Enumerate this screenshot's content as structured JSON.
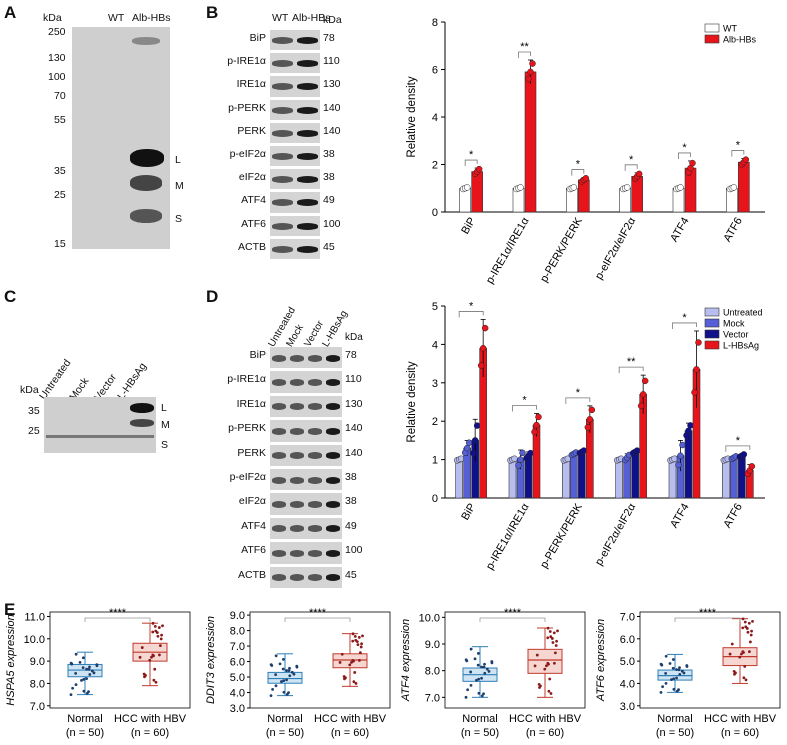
{
  "panels": {
    "A": "A",
    "B": "B",
    "C": "C",
    "D": "D",
    "E": "E"
  },
  "panelA": {
    "kda": "kDa",
    "cols": [
      "WT",
      "Alb-HBs"
    ],
    "ladder": [
      "250",
      "130",
      "100",
      "70",
      "55",
      "35",
      "25",
      "15"
    ],
    "bands": [
      "L",
      "M",
      "S"
    ]
  },
  "panelB_blot": {
    "cols": [
      "WT",
      "Alb-HBs"
    ],
    "kda": "kDa",
    "rows": [
      {
        "label": "BiP",
        "kda": "78"
      },
      {
        "label": "p-IRE1α",
        "kda": "110"
      },
      {
        "label": "IRE1α",
        "kda": "130"
      },
      {
        "label": "p-PERK",
        "kda": "140"
      },
      {
        "label": "PERK",
        "kda": "140"
      },
      {
        "label": "p-eIF2α",
        "kda": "38"
      },
      {
        "label": "eIF2α",
        "kda": "38"
      },
      {
        "label": "ATF4",
        "kda": "49"
      },
      {
        "label": "ATF6",
        "kda": "100"
      },
      {
        "label": "ACTB",
        "kda": "45"
      }
    ]
  },
  "panelC": {
    "kda": "kDa",
    "cols": [
      "Untreated",
      "Mock",
      "Vector",
      "L-HBsAg"
    ],
    "ladder": [
      "35",
      "25"
    ],
    "bands": [
      "L",
      "M",
      "S"
    ]
  },
  "panelD_blot": {
    "cols": [
      "Untreated",
      "Mock",
      "Vector",
      "L-HBsAg"
    ],
    "kda": "kDa",
    "rows": [
      {
        "label": "BiP",
        "kda": "78"
      },
      {
        "label": "p-IRE1α",
        "kda": "110"
      },
      {
        "label": "IRE1α",
        "kda": "130"
      },
      {
        "label": "p-PERK",
        "kda": "140"
      },
      {
        "label": "PERK",
        "kda": "140"
      },
      {
        "label": "p-eIF2α",
        "kda": "38"
      },
      {
        "label": "eIF2α",
        "kda": "38"
      },
      {
        "label": "ATF4",
        "kda": "49"
      },
      {
        "label": "ATF6",
        "kda": "100"
      },
      {
        "label": "ACTB",
        "kda": "45"
      }
    ]
  },
  "chart_data": [
    {
      "id": "B",
      "type": "bar",
      "ylabel": "Relative density",
      "ylim": [
        0,
        8
      ],
      "yticks": [
        "0",
        "2",
        "4",
        "6",
        "8"
      ],
      "categories": [
        "BiP",
        "p-IRE1α/IRE1α",
        "p-PERK/PERK",
        "p-eIF2α/eIF2α",
        "ATF4",
        "ATF6"
      ],
      "series": [
        {
          "name": "WT",
          "color": "#ffffff",
          "values": [
            1,
            1,
            1,
            1,
            1,
            1
          ],
          "err": [
            0.05,
            0.05,
            0.05,
            0.05,
            0.05,
            0.05
          ]
        },
        {
          "name": "Alb-HBs",
          "color": "#e8141b",
          "values": [
            1.7,
            5.9,
            1.35,
            1.5,
            1.85,
            2.1
          ],
          "err": [
            0.15,
            0.5,
            0.1,
            0.15,
            0.3,
            0.15
          ]
        }
      ],
      "significance": [
        "*",
        "**",
        "*",
        "*",
        "*",
        "*"
      ],
      "legend": "top-right"
    },
    {
      "id": "D",
      "type": "bar",
      "ylabel": "Relative density",
      "ylim": [
        0,
        5
      ],
      "yticks": [
        "0",
        "1",
        "2",
        "3",
        "4",
        "5"
      ],
      "categories": [
        "BiP",
        "p-IRE1α/IRE1α",
        "p-PERK/PERK",
        "p-eIF2α/eIF2α",
        "ATF4",
        "ATF6"
      ],
      "series": [
        {
          "name": "Untreated",
          "color": "#b8bdf0",
          "values": [
            1,
            1,
            1,
            1,
            1,
            1
          ],
          "err": [
            0.03,
            0.03,
            0.03,
            0.03,
            0.03,
            0.03
          ]
        },
        {
          "name": "Mock",
          "color": "#5560d6",
          "values": [
            1.3,
            1.0,
            1.15,
            1.05,
            1.1,
            1.05
          ],
          "err": [
            0.2,
            0.25,
            0.05,
            0.1,
            0.4,
            0.05
          ]
        },
        {
          "name": "Vector",
          "color": "#10108a",
          "values": [
            1.5,
            1.1,
            1.2,
            1.2,
            1.75,
            1.1
          ],
          "err": [
            0.55,
            0.1,
            0.05,
            0.05,
            0.2,
            0.05
          ]
        },
        {
          "name": "L-HBsAg",
          "color": "#e8141b",
          "values": [
            3.9,
            1.9,
            2.05,
            2.7,
            3.35,
            0.72
          ],
          "err": [
            0.75,
            0.3,
            0.35,
            0.5,
            1.0,
            0.15
          ]
        }
      ],
      "significance": [
        "*",
        "*",
        "*",
        "**",
        "*",
        "*"
      ],
      "legend": "top-right"
    },
    {
      "id": "E1",
      "type": "box",
      "ylabel": "HSPA5 expression",
      "yticks": [
        "7.0",
        "8.0",
        "9.0",
        "10.0",
        "11.0"
      ],
      "ylim": [
        6.9,
        11.2
      ],
      "categories": [
        "Normal",
        "HCC with HBV"
      ],
      "counts": [
        "(n = 50)",
        "(n = 60)"
      ],
      "boxes": [
        {
          "min": 7.5,
          "q1": 8.3,
          "median": 8.6,
          "q3": 8.85,
          "max": 9.4
        },
        {
          "min": 7.9,
          "q1": 9.0,
          "median": 9.4,
          "q3": 9.8,
          "max": 10.7
        }
      ],
      "significance": "****"
    },
    {
      "id": "E2",
      "type": "box",
      "ylabel": "DDIT3 expression",
      "yticks": [
        "3.0",
        "4.0",
        "5.0",
        "6.0",
        "7.0",
        "8.0",
        "9.0"
      ],
      "ylim": [
        3.0,
        9.2
      ],
      "categories": [
        "Normal",
        "HCC with HBV"
      ],
      "counts": [
        "(n = 50)",
        "(n = 60)"
      ],
      "boxes": [
        {
          "min": 3.8,
          "q1": 4.6,
          "median": 4.9,
          "q3": 5.3,
          "max": 6.5
        },
        {
          "min": 4.4,
          "q1": 5.6,
          "median": 6.1,
          "q3": 6.5,
          "max": 7.8
        }
      ],
      "significance": "****"
    },
    {
      "id": "E3",
      "type": "box",
      "ylabel": "ATF4 expression",
      "yticks": [
        "7.0",
        "8.0",
        "9.0",
        "10.0"
      ],
      "ylim": [
        6.6,
        10.2
      ],
      "categories": [
        "Normal",
        "HCC with HBV"
      ],
      "counts": [
        "(n = 50)",
        "(n = 60)"
      ],
      "boxes": [
        {
          "min": 7.0,
          "q1": 7.6,
          "median": 7.85,
          "q3": 8.1,
          "max": 8.9
        },
        {
          "min": 7.0,
          "q1": 7.9,
          "median": 8.4,
          "q3": 8.8,
          "max": 9.6
        }
      ],
      "significance": "****"
    },
    {
      "id": "E4",
      "type": "box",
      "ylabel": "ATF6 expression",
      "yticks": [
        "3.0",
        "4.0",
        "5.0",
        "6.0",
        "7.0"
      ],
      "ylim": [
        2.9,
        7.2
      ],
      "categories": [
        "Normal",
        "HCC with HBV"
      ],
      "counts": [
        "(n = 50)",
        "(n = 60)"
      ],
      "boxes": [
        {
          "min": 3.6,
          "q1": 4.15,
          "median": 4.35,
          "q3": 4.6,
          "max": 5.3
        },
        {
          "min": 4.0,
          "q1": 4.8,
          "median": 5.2,
          "q3": 5.6,
          "max": 6.9
        }
      ],
      "significance": "****"
    }
  ]
}
